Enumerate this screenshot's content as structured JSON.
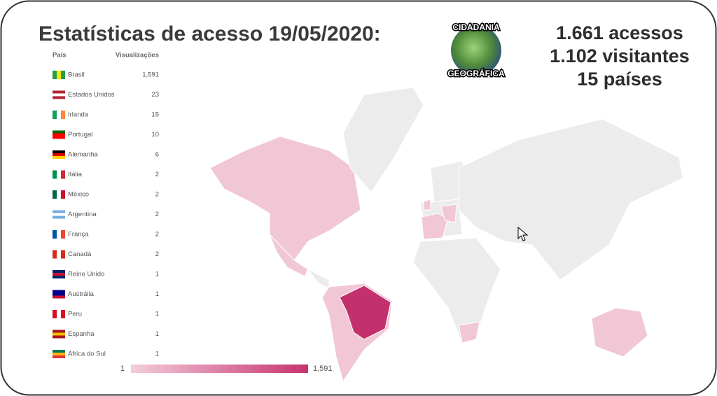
{
  "header": {
    "title": "Estatísticas de acesso 19/05/2020:",
    "stats": [
      "1.661 acessos",
      "1.102 visitantes",
      "15 países"
    ]
  },
  "logo": {
    "top": "CIDADANIA",
    "bottom": "GEOGRÁFICA"
  },
  "table": {
    "columns": [
      "País",
      "Visualizações"
    ],
    "rows": [
      [
        "Brasil",
        "1,591"
      ],
      [
        "Estados Unidos",
        23
      ],
      [
        "Irlanda",
        15
      ],
      [
        "Portugal",
        10
      ],
      [
        "Alemanha",
        6
      ],
      [
        "Itália",
        2
      ],
      [
        "México",
        2
      ],
      [
        "Argentina",
        2
      ],
      [
        "França",
        2
      ],
      [
        "Canadá",
        2
      ],
      [
        "Reino Unido",
        1
      ],
      [
        "Austrália",
        1
      ],
      [
        "Peru",
        1
      ],
      [
        "Espanha",
        1
      ],
      [
        "África do Sul",
        1
      ]
    ]
  },
  "legend": {
    "min": 1,
    "max": "1,591"
  }
}
